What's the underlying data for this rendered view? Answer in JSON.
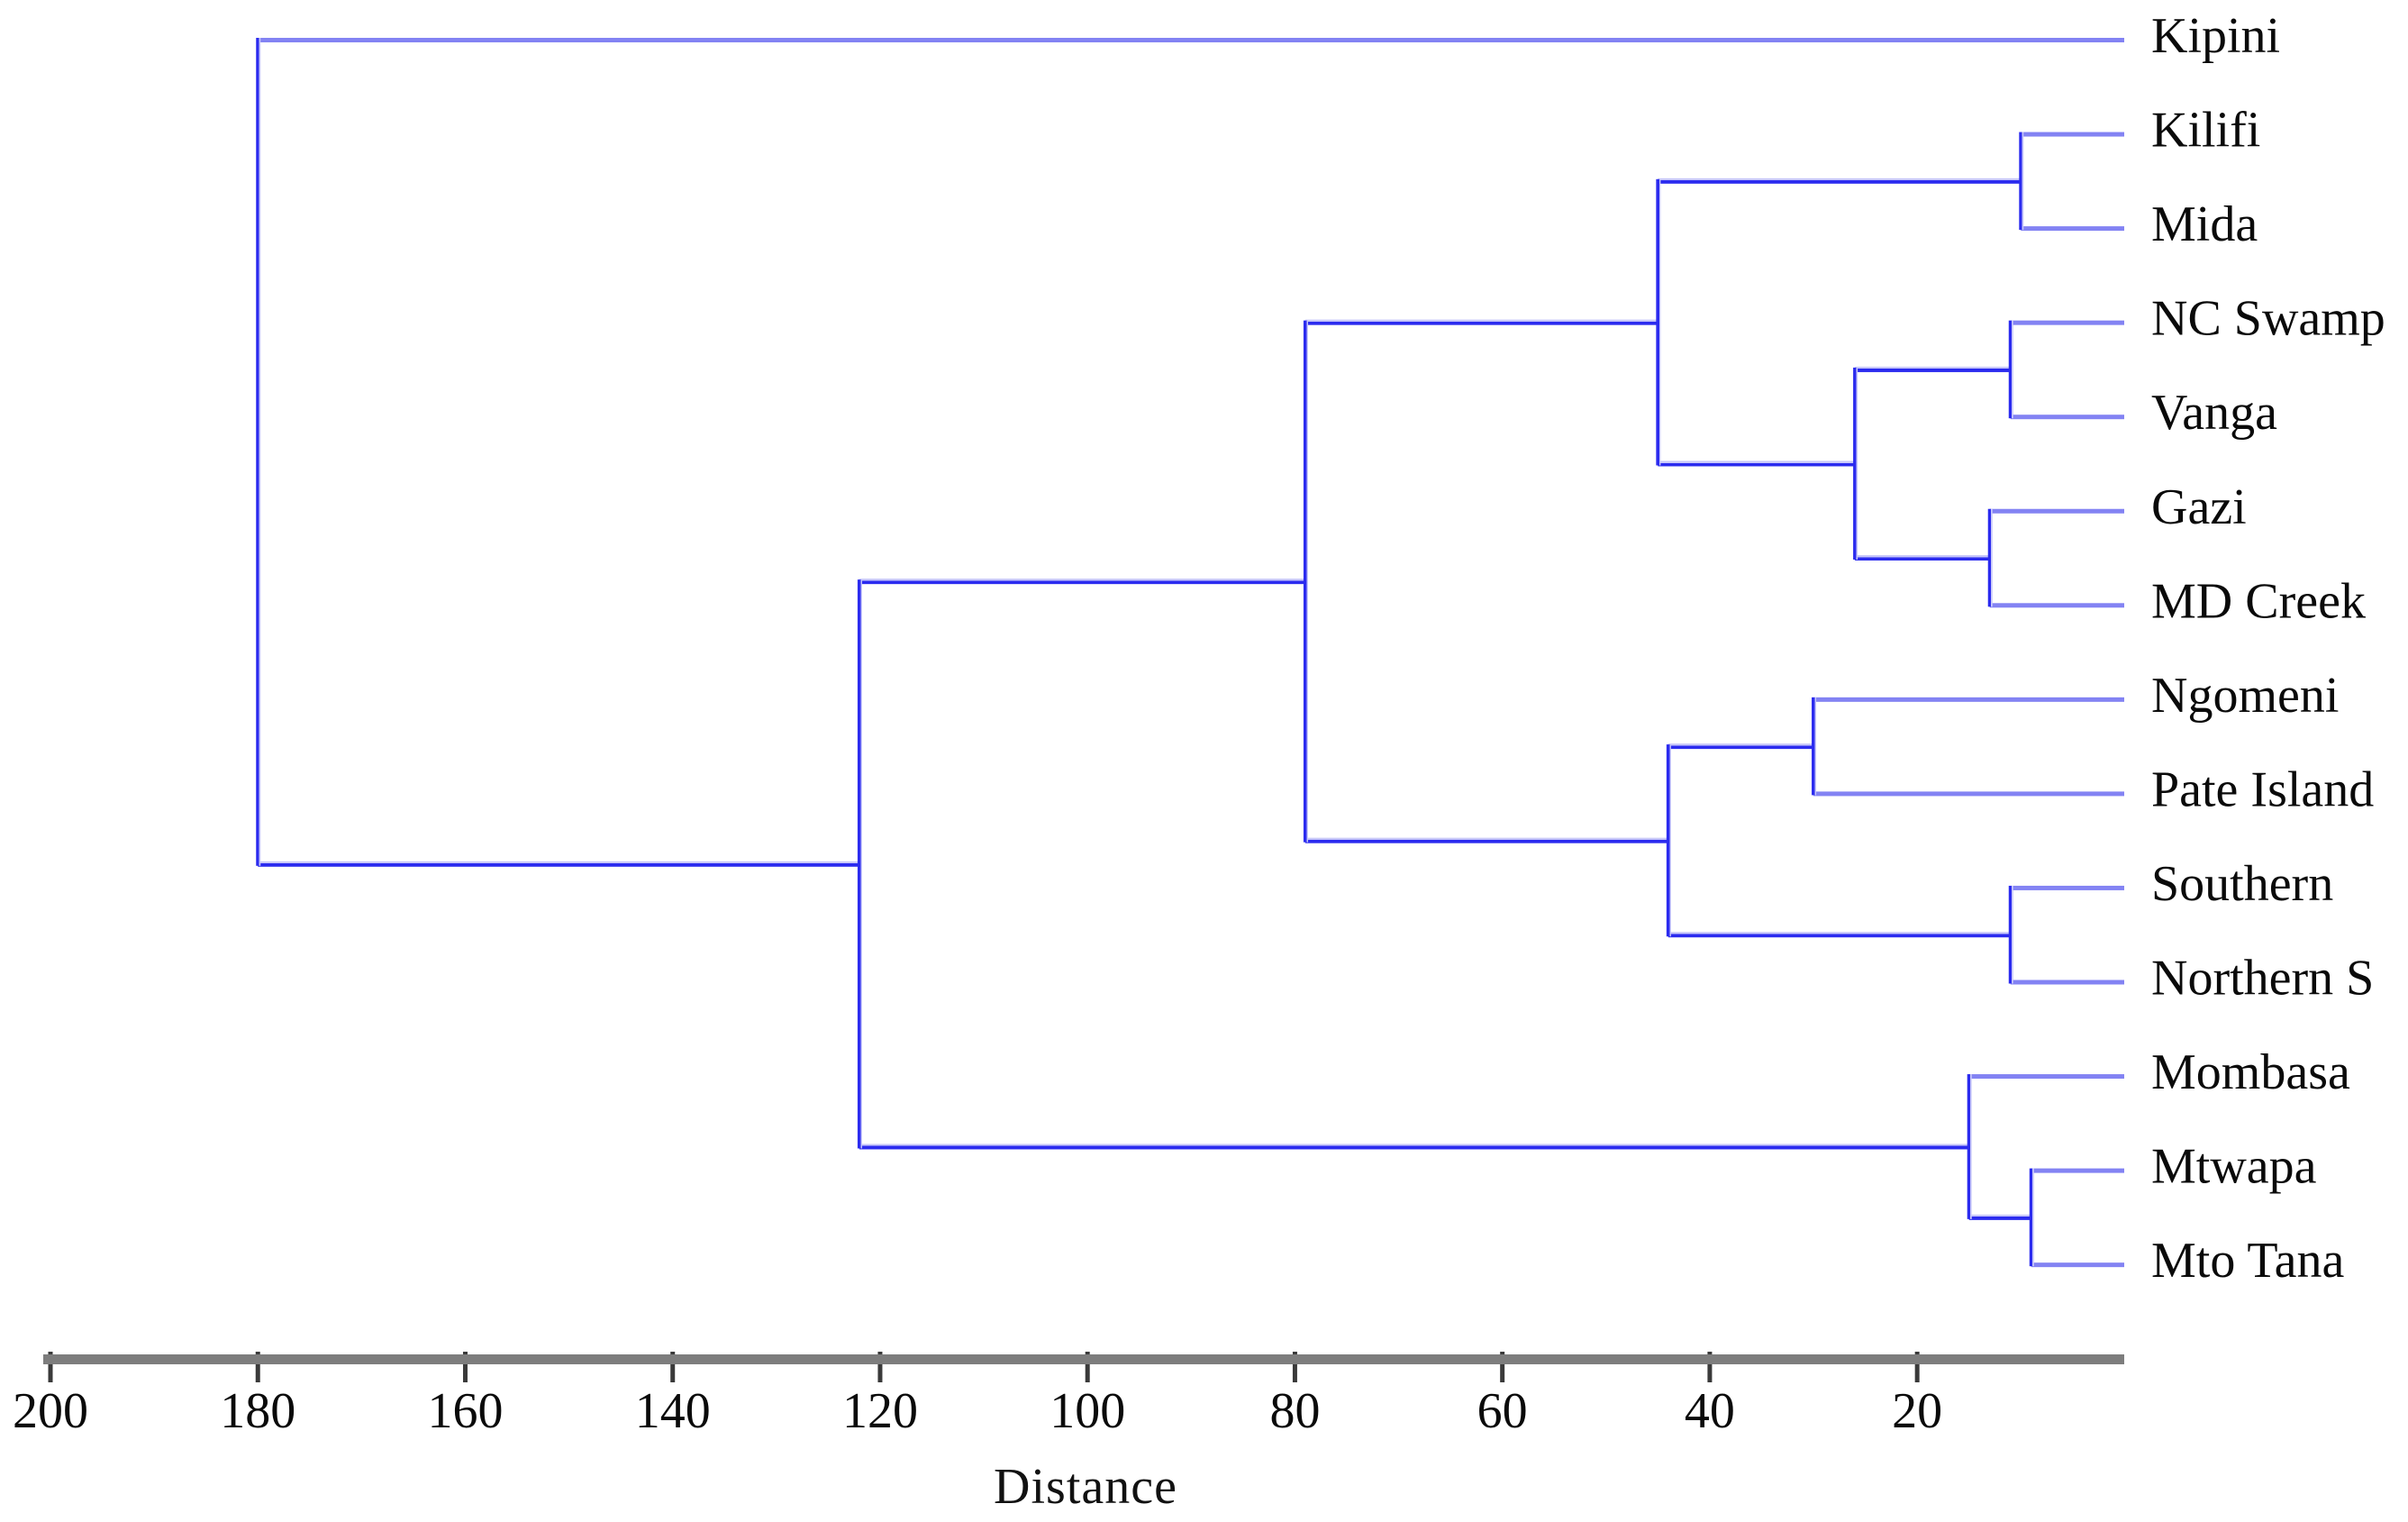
{
  "figure": {
    "kind": "hierarchical-clustering dendrogram",
    "background": "#ffffff"
  },
  "axis": {
    "title": "Distance",
    "ticks": [
      200,
      180,
      160,
      140,
      120,
      100,
      80,
      60,
      40,
      20
    ],
    "range_left_to_right": [
      200,
      0
    ]
  },
  "colors": {
    "branch": "#2b2bef",
    "branch_halo": "#c7c7f9",
    "leaf_branch": "#8383f3",
    "axis_bar": "#7d7d7d",
    "axis_tick": "#3a3a3a",
    "label": "#0a0a0a"
  },
  "chart_data": {
    "type": "dendrogram",
    "orientation": "horizontal, distance decreasing to the right, leaves on right",
    "xlabel": "Distance",
    "x_ticks": [
      200,
      180,
      160,
      140,
      120,
      100,
      80,
      60,
      40,
      20
    ],
    "x_range": [
      200,
      0
    ],
    "leaves_top_to_bottom": [
      "Kipini",
      "Kilifi",
      "Mida",
      "NC Swamp",
      "Vanga",
      "Gazi",
      "MD Creek",
      "Ngomeni",
      "Pate Island",
      "Southern",
      "Northern S",
      "Mombasa",
      "Mtwapa",
      "Mto Tana"
    ],
    "merges": [
      {
        "members": "Mtwapa + Mto Tana",
        "distance": 9
      },
      {
        "members": "Kilifi + Mida",
        "distance": 10
      },
      {
        "members": "NC Swamp + Vanga",
        "distance": 11
      },
      {
        "members": "Southern + Northern S",
        "distance": 11
      },
      {
        "members": "Gazi + MD Creek",
        "distance": 13
      },
      {
        "members": "Mombasa + (Mtwapa,Mto Tana)",
        "distance": 15
      },
      {
        "members": "(NC Swamp,Vanga) + (Gazi,MD Creek)",
        "distance": 26
      },
      {
        "members": "Ngomeni + Pate Island",
        "distance": 30
      },
      {
        "members": "(Ngomeni,Pate Island) + (Southern,Northern S)",
        "distance": 44
      },
      {
        "members": "(Kilifi,Mida) + (NC Swamp,Vanga,Gazi,MD Creek)",
        "distance": 45
      },
      {
        "members": "upper 4-merge + lower 4-merge",
        "distance": 79
      },
      {
        "members": "11-leaf cluster + (Mombasa,Mtwapa,Mto Tana)",
        "distance": 122
      },
      {
        "members": "Kipini + all others (root)",
        "distance": 180
      }
    ],
    "tree": {
      "d": 180,
      "children": [
        {
          "leaf": "Kipini"
        },
        {
          "d": 122,
          "children": [
            {
              "d": 79,
              "children": [
                {
                  "d": 45,
                  "children": [
                    {
                      "d": 10,
                      "children": [
                        {
                          "leaf": "Kilifi"
                        },
                        {
                          "leaf": "Mida"
                        }
                      ]
                    },
                    {
                      "d": 26,
                      "children": [
                        {
                          "d": 11,
                          "children": [
                            {
                              "leaf": "NC Swamp"
                            },
                            {
                              "leaf": "Vanga"
                            }
                          ]
                        },
                        {
                          "d": 13,
                          "children": [
                            {
                              "leaf": "Gazi"
                            },
                            {
                              "leaf": "MD Creek"
                            }
                          ]
                        }
                      ]
                    }
                  ]
                },
                {
                  "d": 44,
                  "children": [
                    {
                      "d": 30,
                      "children": [
                        {
                          "leaf": "Ngomeni"
                        },
                        {
                          "leaf": "Pate Island"
                        }
                      ]
                    },
                    {
                      "d": 11,
                      "children": [
                        {
                          "leaf": "Southern"
                        },
                        {
                          "leaf": "Northern S"
                        }
                      ]
                    }
                  ]
                }
              ]
            },
            {
              "d": 15,
              "children": [
                {
                  "leaf": "Mombasa"
                },
                {
                  "d": 9,
                  "children": [
                    {
                      "leaf": "Mtwapa"
                    },
                    {
                      "leaf": "Mto Tana"
                    }
                  ]
                }
              ]
            }
          ]
        }
      ]
    }
  }
}
